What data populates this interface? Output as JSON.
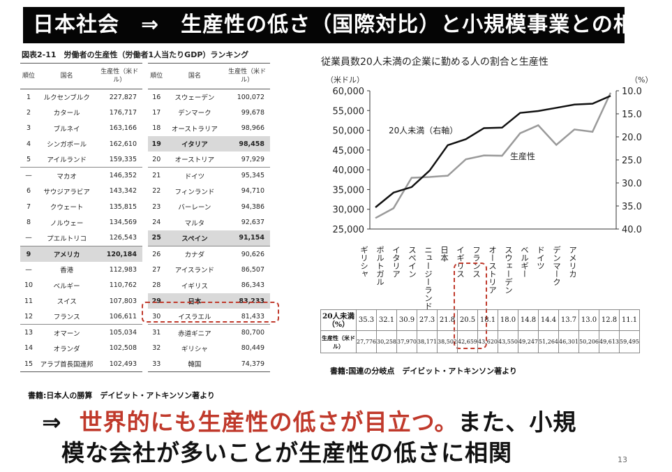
{
  "slide_title": "日本社会　⇒　生産性の低さ（国際対比）と小規模事業との相関",
  "ranking": {
    "caption": "図表2-11　労働者の生産性（労働者1人当たりGDP）ランキング",
    "headers": {
      "rank": "順位",
      "country": "国名",
      "value": "生産性（米ドル）"
    },
    "left": [
      {
        "rank": "1",
        "country": "ルクセンブルク",
        "value": "227,827"
      },
      {
        "rank": "2",
        "country": "カタール",
        "value": "176,717"
      },
      {
        "rank": "3",
        "country": "ブルネイ",
        "value": "163,166"
      },
      {
        "rank": "4",
        "country": "シンガポール",
        "value": "162,610"
      },
      {
        "rank": "5",
        "country": "アイルランド",
        "value": "159,335"
      },
      {
        "rank": "—",
        "country": "マカオ",
        "value": "146,352"
      },
      {
        "rank": "6",
        "country": "サウジアラビア",
        "value": "143,342"
      },
      {
        "rank": "7",
        "country": "クウェート",
        "value": "135,815"
      },
      {
        "rank": "8",
        "country": "ノルウェー",
        "value": "134,569"
      },
      {
        "rank": "—",
        "country": "プエルトリコ",
        "value": "126,543"
      },
      {
        "rank": "9",
        "country": "アメリカ",
        "value": "120,184"
      },
      {
        "rank": "—",
        "country": "香港",
        "value": "112,983"
      },
      {
        "rank": "10",
        "country": "ベルギー",
        "value": "110,762"
      },
      {
        "rank": "11",
        "country": "スイス",
        "value": "107,803"
      },
      {
        "rank": "12",
        "country": "フランス",
        "value": "106,611"
      },
      {
        "rank": "13",
        "country": "オマーン",
        "value": "105,034"
      },
      {
        "rank": "14",
        "country": "オランダ",
        "value": "102,508"
      },
      {
        "rank": "15",
        "country": "アラブ首長国連邦",
        "value": "102,493"
      }
    ],
    "right": [
      {
        "rank": "16",
        "country": "スウェーデン",
        "value": "100,072"
      },
      {
        "rank": "17",
        "country": "デンマーク",
        "value": "99,678"
      },
      {
        "rank": "18",
        "country": "オーストラリア",
        "value": "98,966"
      },
      {
        "rank": "19",
        "country": "イタリア",
        "value": "98,458"
      },
      {
        "rank": "20",
        "country": "オーストリア",
        "value": "97,929"
      },
      {
        "rank": "21",
        "country": "ドイツ",
        "value": "95,345"
      },
      {
        "rank": "22",
        "country": "フィンランド",
        "value": "94,710"
      },
      {
        "rank": "23",
        "country": "バーレーン",
        "value": "94,386"
      },
      {
        "rank": "24",
        "country": "マルタ",
        "value": "92,637"
      },
      {
        "rank": "25",
        "country": "スペイン",
        "value": "91,154"
      },
      {
        "rank": "26",
        "country": "カナダ",
        "value": "90,626"
      },
      {
        "rank": "27",
        "country": "アイスランド",
        "value": "86,507"
      },
      {
        "rank": "28",
        "country": "イギリス",
        "value": "86,343"
      },
      {
        "rank": "29",
        "country": "日本",
        "value": "83,233"
      },
      {
        "rank": "30",
        "country": "イスラエル",
        "value": "81,433"
      },
      {
        "rank": "31",
        "country": "赤道ギニア",
        "value": "80,700"
      },
      {
        "rank": "32",
        "country": "ギリシャ",
        "value": "80,449"
      },
      {
        "rank": "33",
        "country": "韓国",
        "value": "74,379"
      }
    ],
    "source": "書籍:日本人の勝算　デイビット・アトキンソン著より"
  },
  "chart_data": {
    "type": "line",
    "title": "従業員数20人未満の企業に勤める人の割合と生産性",
    "ylabel_left": "（米ドル）",
    "ylabel_right": "（%）",
    "ylim_left": [
      25000,
      60000
    ],
    "ylim_right": [
      10.0,
      40.0
    ],
    "right_axis_inverted": true,
    "left_ticks": [
      "60,000",
      "55,000",
      "50,000",
      "45,000",
      "40,000",
      "35,000",
      "30,000",
      "25,000"
    ],
    "right_ticks": [
      "10.0",
      "15.0",
      "20.0",
      "25.0",
      "30.0",
      "35.0",
      "40.0"
    ],
    "categories": [
      "ギリシャ",
      "ポルトガル",
      "イタリア",
      "スペイン",
      "ニュージーランド",
      "日本",
      "イギリス",
      "フランス",
      "オーストリア",
      "スウェーデン",
      "ベルギー",
      "ドイツ",
      "デンマーク",
      "アメリカ"
    ],
    "series": [
      {
        "name": "20人未満（右軸）",
        "axis": "right",
        "values": [
          35.3,
          32.1,
          30.9,
          27.3,
          21.8,
          20.5,
          18.1,
          18.0,
          14.8,
          14.4,
          13.7,
          13.0,
          12.8,
          11.1
        ]
      },
      {
        "name": "生産性",
        "axis": "left",
        "values": [
          27776,
          30258,
          37970,
          38171,
          38502,
          42659,
          43620,
          43550,
          49247,
          51264,
          46301,
          50206,
          49613,
          59495
        ]
      }
    ],
    "table_rows": [
      {
        "label": "20人未満（%）",
        "values": [
          "35.3",
          "32.1",
          "30.9",
          "27.3",
          "21.8",
          "20.5",
          "18.1",
          "18.0",
          "14.8",
          "14.4",
          "13.7",
          "13.0",
          "12.8",
          "11.1"
        ]
      },
      {
        "label": "生産性（米ドル）",
        "values": [
          "27,776",
          "30,258",
          "37,970",
          "38,171",
          "38,502",
          "42,659",
          "43,620",
          "43,550",
          "49,247",
          "51,264",
          "46,301",
          "50,206",
          "49,613",
          "59,495"
        ]
      }
    ]
  },
  "chart_source": "書籍:国連の分岐点　デイビット・アトキンソン著より",
  "conclusion": {
    "arrow": "⇒",
    "highlight": "世界的にも生産性の低さが目立つ。",
    "rest1": "また、小規",
    "line2": "模な会社が多いことが生産性の低さに相関"
  },
  "page_number": "13"
}
